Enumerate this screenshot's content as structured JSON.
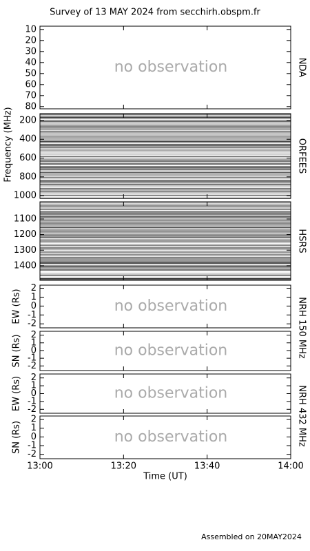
{
  "title": "Survey of 13 MAY 2024 from secchirh.obspm.fr",
  "footer": "Assembled on 20MAY2024",
  "xlabel": "Time (UT)",
  "xlim": [
    "13:00",
    "14:00"
  ],
  "xticks": [
    "13:00",
    "13:20",
    "13:40",
    "14:00"
  ],
  "frequency_label": "Frequency (MHz)",
  "group_labels": [
    "NRH 150 MHz",
    "NRH 432 MHz"
  ],
  "chart_data": [
    {
      "type": "empty",
      "name": "NDA",
      "note": "no observation",
      "ylim": [
        7,
        82
      ],
      "yticks": [
        10,
        20,
        30,
        40,
        50,
        60,
        70,
        80
      ]
    },
    {
      "type": "spectrogram",
      "name": "ORFEES",
      "ylim": [
        127,
        1029
      ],
      "yticks": [
        200,
        400,
        600,
        800,
        1000
      ]
    },
    {
      "type": "spectrogram",
      "name": "HSRS",
      "ylim": [
        990,
        1493
      ],
      "yticks": [
        1100,
        1200,
        1300,
        1400
      ]
    },
    {
      "type": "empty",
      "ylabel": "EW (Rs)",
      "note": "no observation",
      "ylim": [
        2.35,
        -2.45
      ],
      "yticks": [
        2,
        1,
        0,
        -1,
        -2
      ]
    },
    {
      "type": "empty",
      "ylabel": "SN (Rs)",
      "note": "no observation",
      "ylim": [
        2.5,
        -2.6
      ],
      "yticks": [
        2,
        1,
        0,
        -1,
        -2
      ]
    },
    {
      "type": "empty",
      "ylabel": "EW (Rs)",
      "note": "no observation",
      "ylim": [
        2.5,
        -2.5
      ],
      "yticks": [
        2,
        1,
        0,
        -1,
        -2
      ]
    },
    {
      "type": "empty",
      "ylabel": "SN (Rs)",
      "note": "no observation",
      "ylim": [
        2.4,
        -2.5
      ],
      "yticks": [
        2,
        1,
        0,
        -1,
        -2
      ]
    }
  ]
}
